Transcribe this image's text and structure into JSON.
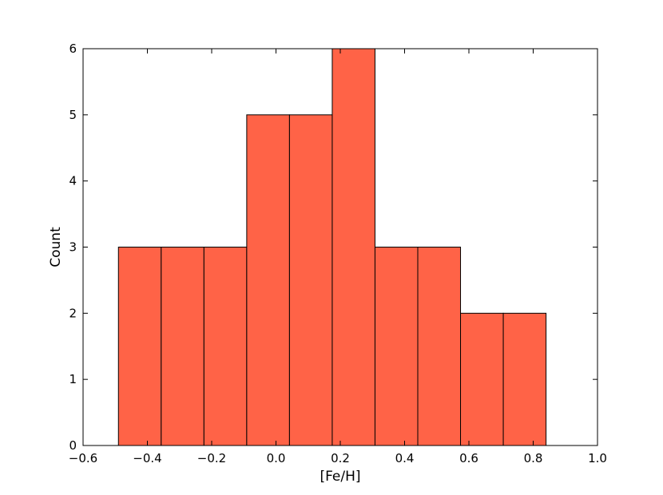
{
  "chart_data": {
    "type": "bar",
    "xlabel": "[Fe/H]",
    "ylabel": "Count",
    "xlim": [
      -0.6,
      1.0
    ],
    "ylim": [
      0,
      6
    ],
    "bar_color": "#ff6347",
    "edge_color": "#000000",
    "bin_edges": [
      -0.49,
      -0.357,
      -0.224,
      -0.091,
      0.042,
      0.175,
      0.308,
      0.441,
      0.574,
      0.707,
      0.84
    ],
    "values": [
      3,
      3,
      3,
      5,
      5,
      6,
      3,
      3,
      2,
      2
    ],
    "x_ticks": [
      -0.6,
      -0.4,
      -0.2,
      0.0,
      0.2,
      0.4,
      0.6,
      0.8,
      1.0
    ],
    "x_tick_labels": [
      "−0.6",
      "−0.4",
      "−0.2",
      "0.0",
      "0.2",
      "0.4",
      "0.6",
      "0.8",
      "1.0"
    ],
    "y_ticks": [
      0,
      1,
      2,
      3,
      4,
      5,
      6
    ],
    "y_tick_labels": [
      "0",
      "1",
      "2",
      "3",
      "4",
      "5",
      "6"
    ],
    "grid": false,
    "legend": false
  }
}
